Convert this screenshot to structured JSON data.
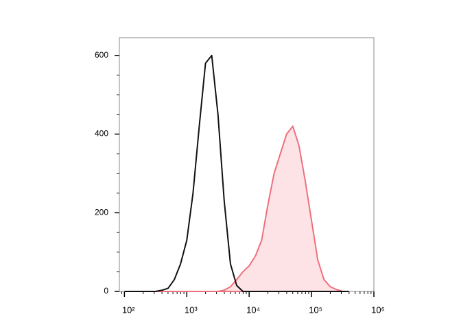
{
  "chart_data": {
    "type": "line",
    "x": [
      100,
      126,
      158,
      200,
      251,
      316,
      398,
      501,
      631,
      794,
      1000,
      1259,
      1585,
      1995,
      2512,
      3162,
      3981,
      5012,
      6310,
      7943,
      10000,
      12589,
      15849,
      19953,
      25119,
      31623,
      39811,
      50119,
      63096,
      79433,
      100000,
      125893,
      158489,
      199526,
      251189,
      316228,
      398107
    ],
    "series": [
      {
        "color": "#111111",
        "fill": "none",
        "values": [
          0,
          0,
          0,
          0,
          0,
          0,
          3,
          8,
          30,
          70,
          130,
          250,
          420,
          580,
          600,
          450,
          230,
          70,
          15,
          0,
          0,
          0,
          0,
          0,
          0,
          0,
          0,
          0,
          0,
          0,
          0,
          0,
          0,
          0,
          0,
          0,
          0
        ]
      },
      {
        "color": "#ee6f7c",
        "fill": "#fde3e6",
        "values": [
          0,
          0,
          0,
          0,
          0,
          0,
          0,
          0,
          0,
          0,
          0,
          0,
          0,
          0,
          0,
          0,
          3,
          12,
          30,
          50,
          65,
          90,
          130,
          220,
          300,
          350,
          400,
          420,
          370,
          280,
          180,
          80,
          30,
          12,
          5,
          0,
          0
        ]
      }
    ],
    "xlog": true,
    "xlim": [
      83,
      1000000
    ],
    "xticks": [
      {
        "value": 100,
        "label": "10²"
      },
      {
        "value": 1000,
        "label": "10³"
      },
      {
        "value": 10000,
        "label": "10⁴"
      },
      {
        "value": 100000,
        "label": "10⁵"
      },
      {
        "value": 1000000,
        "label": "10⁶"
      }
    ],
    "xminorticks": [
      90,
      200,
      300,
      400,
      500,
      600,
      700,
      800,
      900,
      2000,
      3000,
      4000,
      5000,
      6000,
      7000,
      8000,
      9000,
      20000,
      30000,
      40000,
      50000,
      60000,
      70000,
      80000,
      90000,
      200000,
      300000,
      400000,
      500000,
      600000,
      700000,
      800000,
      900000
    ],
    "ylim": [
      0,
      645
    ],
    "yticks": [
      0,
      200,
      400,
      600
    ],
    "yminorticks": [
      50,
      100,
      150,
      250,
      300,
      350,
      450,
      500,
      550
    ]
  }
}
